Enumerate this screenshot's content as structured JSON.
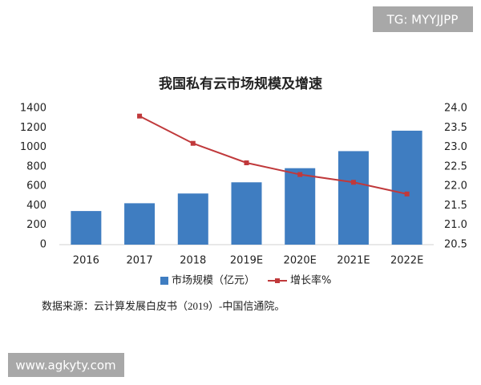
{
  "chart_data": {
    "type": "bar-line",
    "title": "我国私有云市场规模及增速",
    "categories": [
      "2016",
      "2017",
      "2018",
      "2019E",
      "2020E",
      "2021E",
      "2022E"
    ],
    "series": [
      {
        "name": "市场规模（亿元）",
        "type": "bar",
        "color": "#3f7dc1",
        "values": [
          345,
          425,
          525,
          640,
          785,
          960,
          1170
        ]
      },
      {
        "name": "增长率%",
        "type": "line",
        "axis": "y2",
        "color": "#c0393b",
        "values": [
          null,
          23.8,
          23.1,
          22.6,
          22.3,
          22.1,
          21.8
        ]
      }
    ],
    "ylim": [
      0,
      1400
    ],
    "yticks": [
      0,
      200,
      400,
      600,
      800,
      1000,
      1200,
      1400
    ],
    "y2lim": [
      20.5,
      24.0
    ],
    "y2ticks": [
      20.5,
      {
        "value": 21,
        "label": "21.0"
      },
      21.5,
      {
        "value": 22,
        "label": "22.0"
      },
      22.5,
      {
        "value": 23,
        "label": "23.0"
      },
      23.5,
      {
        "value": 24,
        "label": "24.0"
      }
    ],
    "grid": false,
    "legend": "bottom"
  },
  "source": "数据来源：云计算发展白皮书（2019）-中国信通院。",
  "watermarks": {
    "top": "TG: MYYJJPP",
    "bottom": "www.agkyty.com"
  }
}
